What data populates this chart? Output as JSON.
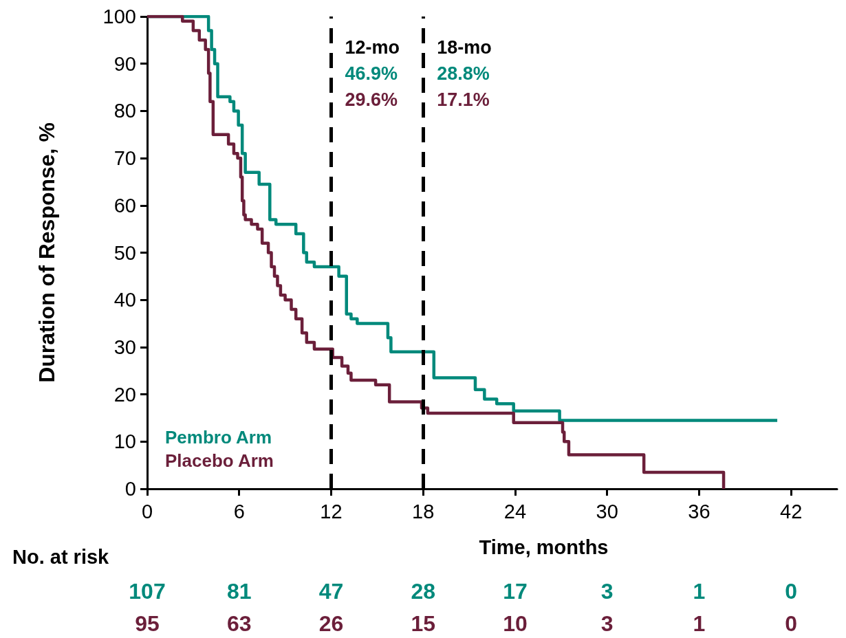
{
  "chart_data": {
    "type": "step",
    "xlabel": "Time, months",
    "ylabel": "Duration of Response, %",
    "xlim": [
      0,
      45
    ],
    "xticks": [
      0,
      6,
      12,
      18,
      24,
      30,
      36,
      42
    ],
    "ylim": [
      0,
      100
    ],
    "yticks": [
      0,
      10,
      20,
      30,
      40,
      50,
      60,
      70,
      80,
      90,
      100
    ],
    "grid": false,
    "legend": "bottom left",
    "marker": "none",
    "line_style": "solid",
    "series": [
      {
        "name": "Pembro Arm",
        "color": "#00897b",
        "x": [
          0,
          4.0,
          4.2,
          4.4,
          4.6,
          5.4,
          5.65,
          5.95,
          6.2,
          6.4,
          7.3,
          8.0,
          8.4,
          8.8,
          9.7,
          10.2,
          10.4,
          10.9,
          12.5,
          13.0,
          13.3,
          13.7,
          15.7,
          15.9,
          18.7,
          21.4,
          22.0,
          22.8,
          23.9,
          26.9,
          41.1
        ],
        "values": [
          100,
          97,
          93,
          90,
          83,
          82,
          80,
          77,
          71,
          67,
          64.5,
          57,
          56,
          56,
          54,
          50,
          48,
          47,
          45,
          37,
          36,
          35,
          32,
          29,
          23.5,
          21,
          19,
          18,
          16.5,
          14.5,
          14.5
        ]
      },
      {
        "name": "Placebo Arm",
        "color": "#6b1f3a",
        "x": [
          0,
          2.3,
          3.0,
          3.4,
          3.8,
          4.0,
          4.1,
          4.3,
          5.3,
          5.65,
          5.9,
          6.1,
          6.2,
          6.3,
          6.4,
          6.8,
          7.2,
          7.5,
          7.9,
          8.1,
          8.3,
          8.5,
          8.7,
          9.0,
          9.4,
          9.7,
          10.1,
          10.4,
          10.9,
          12.1,
          12.7,
          13.1,
          13.3,
          14.9,
          15.8,
          17.9,
          18.3,
          23.9,
          27.1,
          27.2,
          27.5,
          32.4,
          37.6
        ],
        "values": [
          100,
          99,
          97,
          95,
          93,
          88,
          82,
          75,
          73,
          71,
          70,
          66,
          61,
          58,
          57,
          56,
          55,
          52,
          50,
          47,
          45,
          43,
          41,
          40,
          38,
          36,
          33,
          31,
          29.6,
          27.8,
          26,
          24.5,
          23,
          22,
          18.4,
          17.1,
          16,
          14,
          12,
          10,
          7.2,
          3.5,
          0
        ]
      }
    ],
    "ref_lines": [
      {
        "axis": "x",
        "value": 12,
        "label": null,
        "color": "#000000",
        "line_style": "dashed"
      },
      {
        "axis": "x",
        "value": 18,
        "label": null,
        "color": "#000000",
        "line_style": "dashed"
      }
    ],
    "annotations": [
      "12-mo",
      "46.9%",
      "29.6%",
      "18-mo",
      "28.8%",
      "17.1%",
      "No. at risk",
      "107",
      "81",
      "47",
      "28",
      "17",
      "3",
      "1",
      "0",
      "95",
      "63",
      "26",
      "15",
      "10",
      "3",
      "1",
      "0"
    ]
  }
}
